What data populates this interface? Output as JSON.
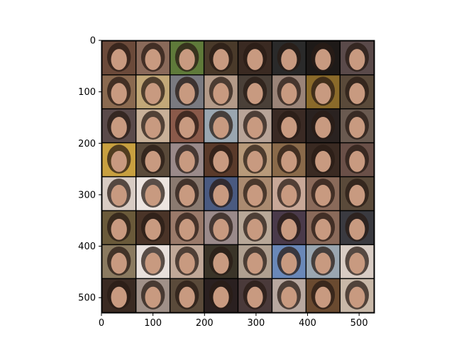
{
  "chart_data": {
    "type": "image-grid",
    "title": "",
    "xlabel": "",
    "ylabel": "",
    "grid": false,
    "xlim": [
      0,
      530
    ],
    "ylim": [
      530,
      0
    ],
    "xticks": [
      0,
      100,
      200,
      300,
      400,
      500
    ],
    "yticks": [
      0,
      100,
      200,
      300,
      400,
      500
    ],
    "grid_rows": 8,
    "grid_cols": 8,
    "tile_size": 64,
    "tile_gap": 2,
    "tile_content": "generated face image",
    "tiles": [
      [
        "#6b4a3a",
        "#8a6a5a",
        "#5f7a3a",
        "#4a3a2a",
        "#3a2a22",
        "#2a2a2a",
        "#1e1a18",
        "#5a4a4a"
      ],
      [
        "#8a6a50",
        "#c2a878",
        "#7a7a80",
        "#b39a88",
        "#4a4038",
        "#9a8478",
        "#8a6a2a",
        "#5a4a3a"
      ],
      [
        "#5a4a4a",
        "#c8b098",
        "#8a5a4a",
        "#9aa6b0",
        "#b8a498",
        "#3a2a24",
        "#2a2220",
        "#6a5a50"
      ],
      [
        "#c8a040",
        "#5a4a3a",
        "#9a8a8a",
        "#5a3a2a",
        "#b89a7a",
        "#8a6a4a",
        "#3a2a22",
        "#6a5048"
      ],
      [
        "#d8ccc4",
        "#ece4e0",
        "#8a7a70",
        "#4a5a80",
        "#aa8a70",
        "#c8a898",
        "#8a6a5a",
        "#5a4a3a"
      ],
      [
        "#6a5a3a",
        "#4a3428",
        "#9a7a6a",
        "#9a8a8a",
        "#b8a898",
        "#4a3a4a",
        "#8a6a5a",
        "#3a3a40"
      ],
      [
        "#8a7a60",
        "#e8e0dc",
        "#c0a898",
        "#3a3428",
        "#b0a090",
        "#6a88b8",
        "#9aa6b0",
        "#d8ccc4"
      ],
      [
        "#3a2a22",
        "#a09088",
        "#5a4a3a",
        "#2a2020",
        "#4a3a3a",
        "#b8a8a0",
        "#6a4a30",
        "#c8b8a8"
      ]
    ]
  }
}
